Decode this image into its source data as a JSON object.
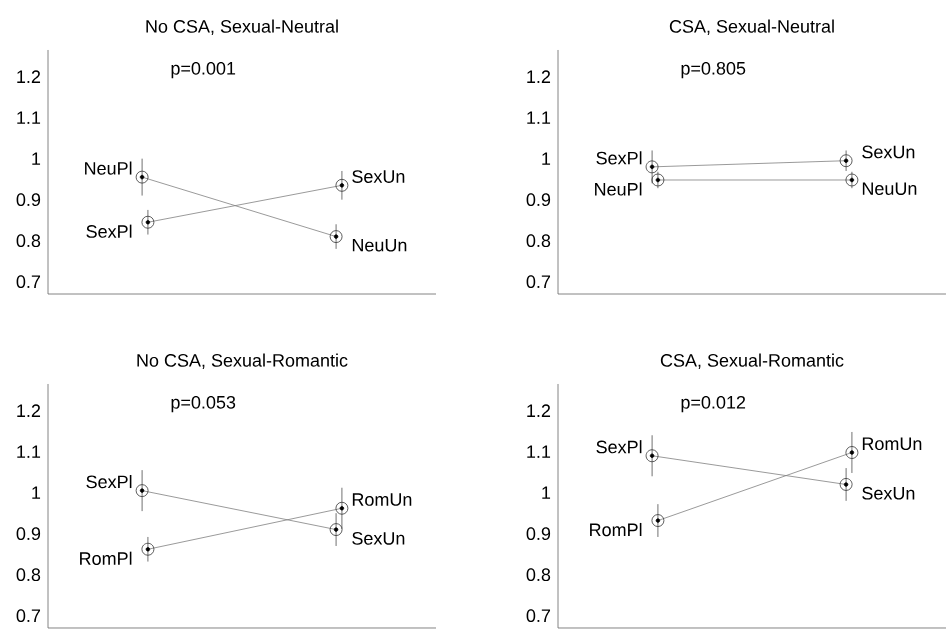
{
  "chart_data": [
    {
      "type": "line",
      "title": "No CSA, Sexual-Neutral",
      "annotations": [
        "p=0.001"
      ],
      "categories": [
        null,
        null
      ],
      "ylim": [
        0.67,
        1.265
      ],
      "yticks": [
        0.7,
        0.8,
        0.9,
        1,
        1.1,
        1.2
      ],
      "tick_labels": "y",
      "marker": "circle",
      "grid": false,
      "series": [
        {
          "color": "#808080",
          "values": [
            0.955,
            0.81
          ],
          "errors": [
            0.045,
            0.03
          ],
          "value_labels": [
            "NeuPl",
            "NeuUn"
          ]
        },
        {
          "color": "#808080",
          "values": [
            0.845,
            0.935
          ],
          "errors": [
            0.03,
            0.035
          ],
          "value_labels": [
            "SexPl",
            "SexUn"
          ]
        }
      ]
    },
    {
      "type": "line",
      "title": "CSA, Sexual-Neutral",
      "annotations": [
        "p=0.805"
      ],
      "categories": [
        null,
        null
      ],
      "ylim": [
        0.67,
        1.265
      ],
      "yticks": [
        0.7,
        0.8,
        0.9,
        1,
        1.1,
        1.2
      ],
      "tick_labels": "y",
      "marker": "circle",
      "grid": false,
      "series": [
        {
          "color": "#808080",
          "values": [
            0.98,
            0.995
          ],
          "errors": [
            0.04,
            0.025
          ],
          "value_labels": [
            "SexPl",
            "SexUn"
          ]
        },
        {
          "color": "#808080",
          "values": [
            0.948,
            0.948
          ],
          "errors": [
            0.02,
            0.02
          ],
          "value_labels": [
            "NeuPl",
            "NeuUn"
          ]
        }
      ]
    },
    {
      "type": "line",
      "title": "No CSA, Sexual-Romantic",
      "annotations": [
        "p=0.053"
      ],
      "categories": [
        null,
        null
      ],
      "ylim": [
        0.67,
        1.265
      ],
      "yticks": [
        0.7,
        0.8,
        0.9,
        1,
        1.1,
        1.2
      ],
      "tick_labels": "y",
      "marker": "circle",
      "grid": false,
      "series": [
        {
          "color": "#808080",
          "values": [
            1.005,
            0.91
          ],
          "errors": [
            0.05,
            0.04
          ],
          "value_labels": [
            "SexPl",
            "SexUn"
          ]
        },
        {
          "color": "#808080",
          "values": [
            0.862,
            0.962
          ],
          "errors": [
            0.03,
            0.05
          ],
          "value_labels": [
            "RomPl",
            "RomUn"
          ]
        }
      ]
    },
    {
      "type": "line",
      "title": "CSA, Sexual-Romantic",
      "annotations": [
        "p=0.012"
      ],
      "categories": [
        null,
        null
      ],
      "ylim": [
        0.67,
        1.265
      ],
      "yticks": [
        0.7,
        0.8,
        0.9,
        1,
        1.1,
        1.2
      ],
      "tick_labels": "y",
      "marker": "circle",
      "grid": false,
      "series": [
        {
          "color": "#808080",
          "values": [
            1.09,
            1.02
          ],
          "errors": [
            0.05,
            0.04
          ],
          "value_labels": [
            "SexPl",
            "SexUn"
          ]
        },
        {
          "color": "#808080",
          "values": [
            0.932,
            1.098
          ],
          "errors": [
            0.04,
            0.05
          ],
          "value_labels": [
            "RomPl",
            "RomUn"
          ]
        }
      ]
    }
  ]
}
